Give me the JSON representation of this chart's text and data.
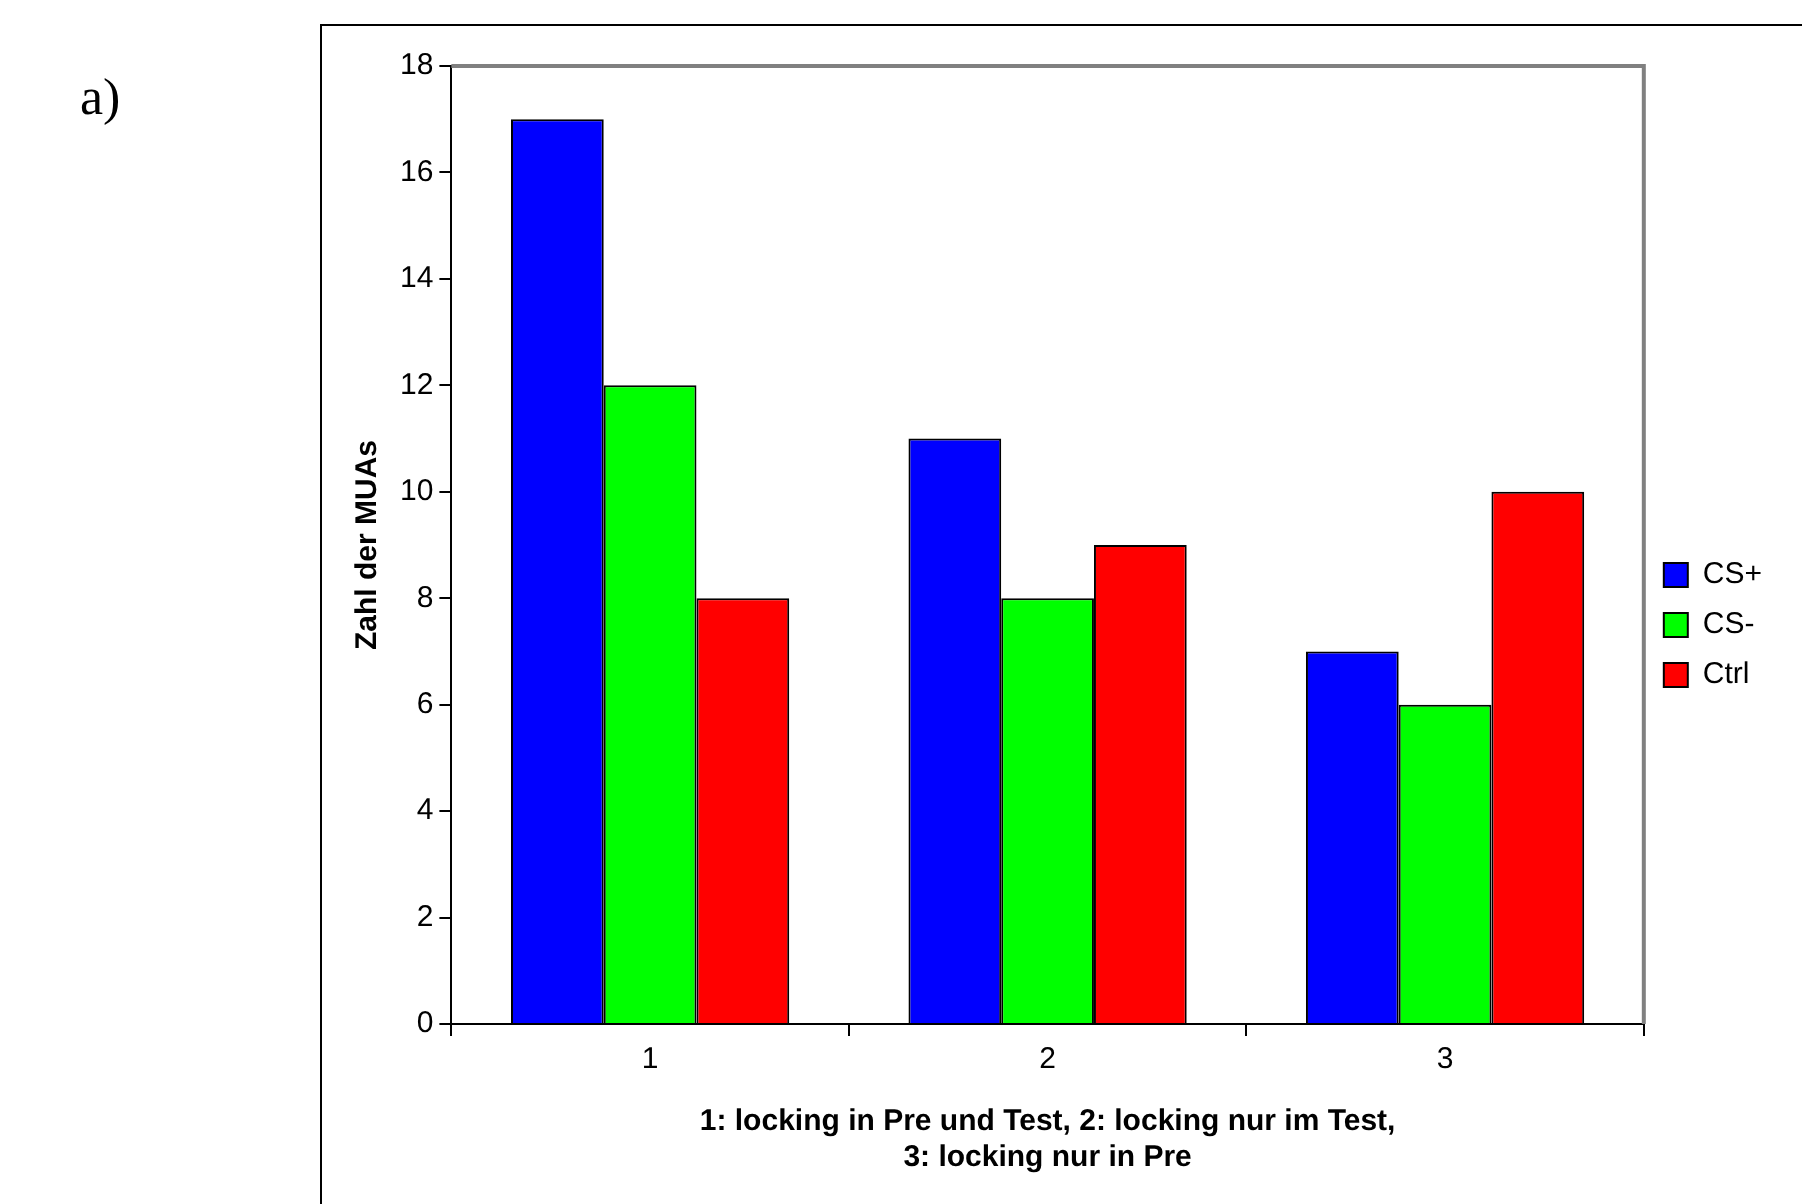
{
  "chart_data": {
    "type": "bar",
    "ylabel": "Zahl der MUAs",
    "xlabel": "1: locking in Pre und Test, 2: locking nur im Test,\n3: locking nur in Pre",
    "annotations": [
      "a)"
    ],
    "categories": [
      "1",
      "2",
      "3"
    ],
    "series": [
      {
        "name": "CS+",
        "color": "#0000ff",
        "values": [
          17,
          11,
          7
        ]
      },
      {
        "name": "CS-",
        "color": "#00ff00",
        "values": [
          12,
          8,
          6
        ]
      },
      {
        "name": "Ctrl",
        "color": "#ff0000",
        "values": [
          8,
          9,
          10
        ]
      }
    ],
    "ylim": [
      0,
      18
    ],
    "yticks": [
      0,
      2,
      4,
      6,
      8,
      10,
      12,
      14,
      16,
      18
    ],
    "grid": false,
    "legend": "right"
  }
}
